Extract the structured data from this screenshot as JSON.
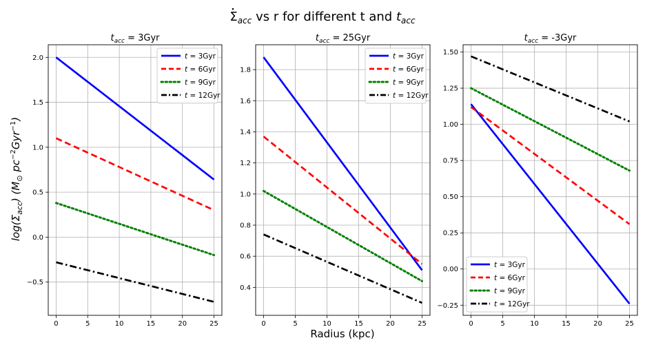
{
  "figure": {
    "suptitle": "$\\dot{\\Sigma}_{acc}$ vs r for different t and $t_{acc}$",
    "suptitle_parts": {
      "sigma": "Σ",
      "acc1": "acc",
      "middle": " vs r for different t and ",
      "t": "t",
      "acc2": "acc"
    },
    "xlabel": "Radius (kpc)",
    "ylabel": "log(Σacc) (M⊙ pc⁻²Gyr⁻¹)",
    "ylabel_parts": {
      "log": "log(",
      "sigma": "Σ",
      "acc": "acc",
      "mid": ") (M",
      "sun": "⊙",
      "pc": " pc",
      "e1": "−2",
      "gyr": "Gyr",
      "e2": "−1",
      "close": ")"
    }
  },
  "chart_data": [
    {
      "type": "line",
      "title": "t_acc = 3Gyr",
      "title_parts": {
        "t": "t",
        "sub": "acc",
        "rest": " = 3Gyr"
      },
      "xlim": [
        -1.25,
        26.25
      ],
      "ylim": [
        -0.87,
        2.14
      ],
      "xticks": [
        0,
        5,
        10,
        15,
        20,
        25
      ],
      "yticks": [
        -0.5,
        0.0,
        0.5,
        1.0,
        1.5,
        2.0
      ],
      "ytick_labels": [
        "−0.5",
        "0.0",
        "0.5",
        "1.0",
        "1.5",
        "2.0"
      ],
      "grid": true,
      "legend_position": "upper right",
      "x": [
        0,
        25
      ],
      "series": [
        {
          "name": "t = 3Gyr",
          "label_t": "t",
          "label_rest": " = 3Gyr",
          "values": [
            2.0,
            0.64
          ],
          "color": "#0000ff",
          "style": "solid"
        },
        {
          "name": "t = 6Gyr",
          "label_t": "t",
          "label_rest": " = 6Gyr",
          "values": [
            1.1,
            0.3
          ],
          "color": "#ff0000",
          "style": "dashed"
        },
        {
          "name": "t = 9Gyr",
          "label_t": "t",
          "label_rest": " = 9Gyr",
          "values": [
            0.38,
            -0.2
          ],
          "color": "#008000",
          "style": "dotted"
        },
        {
          "name": "t = 12Gyr",
          "label_t": "t",
          "label_rest": " = 12Gyr",
          "values": [
            -0.28,
            -0.72
          ],
          "color": "#000000",
          "style": "dashdot"
        }
      ]
    },
    {
      "type": "line",
      "title": "t_acc = 25Gyr",
      "title_parts": {
        "t": "t",
        "sub": "acc",
        "rest": " = 25Gyr"
      },
      "xlim": [
        -1.25,
        26.25
      ],
      "ylim": [
        0.22,
        1.96
      ],
      "xticks": [
        0,
        5,
        10,
        15,
        20,
        25
      ],
      "yticks": [
        0.4,
        0.6,
        0.8,
        1.0,
        1.2,
        1.4,
        1.6,
        1.8
      ],
      "ytick_labels": [
        "0.4",
        "0.6",
        "0.8",
        "1.0",
        "1.2",
        "1.4",
        "1.6",
        "1.8"
      ],
      "grid": true,
      "legend_position": "upper right",
      "x": [
        0,
        25
      ],
      "series": [
        {
          "name": "t = 3Gyr",
          "label_t": "t",
          "label_rest": " = 3Gyr",
          "values": [
            1.88,
            0.51
          ],
          "color": "#0000ff",
          "style": "solid"
        },
        {
          "name": "t = 6Gyr",
          "label_t": "t",
          "label_rest": " = 6Gyr",
          "values": [
            1.37,
            0.55
          ],
          "color": "#ff0000",
          "style": "dashed"
        },
        {
          "name": "t = 9Gyr",
          "label_t": "t",
          "label_rest": " = 9Gyr",
          "values": [
            1.02,
            0.44
          ],
          "color": "#008000",
          "style": "dotted"
        },
        {
          "name": "t = 12Gyr",
          "label_t": "t",
          "label_rest": " = 12Gyr",
          "values": [
            0.74,
            0.3
          ],
          "color": "#000000",
          "style": "dashdot"
        }
      ]
    },
    {
      "type": "line",
      "title": "t_acc = -3Gyr",
      "title_parts": {
        "t": "t",
        "sub": "acc",
        "rest": " = -3Gyr"
      },
      "xlim": [
        -1.25,
        26.25
      ],
      "ylim": [
        -0.32,
        1.55
      ],
      "xticks": [
        0,
        5,
        10,
        15,
        20,
        25
      ],
      "yticks": [
        -0.25,
        0.0,
        0.25,
        0.5,
        0.75,
        1.0,
        1.25,
        1.5
      ],
      "ytick_labels": [
        "−0.25",
        "0.00",
        "0.25",
        "0.50",
        "0.75",
        "1.00",
        "1.25",
        "1.50"
      ],
      "grid": true,
      "legend_position": "lower left",
      "x": [
        0,
        25
      ],
      "series": [
        {
          "name": "t = 3Gyr",
          "label_t": "t",
          "label_rest": " = 3Gyr",
          "values": [
            1.14,
            -0.24
          ],
          "color": "#0000ff",
          "style": "solid"
        },
        {
          "name": "t = 6Gyr",
          "label_t": "t",
          "label_rest": " = 6Gyr",
          "values": [
            1.12,
            0.31
          ],
          "color": "#ff0000",
          "style": "dashed"
        },
        {
          "name": "t = 9Gyr",
          "label_t": "t",
          "label_rest": " = 9Gyr",
          "values": [
            1.25,
            0.68
          ],
          "color": "#008000",
          "style": "dotted"
        },
        {
          "name": "t = 12Gyr",
          "label_t": "t",
          "label_rest": " = 12Gyr",
          "values": [
            1.47,
            1.02
          ],
          "color": "#000000",
          "style": "dashdot"
        }
      ]
    }
  ]
}
